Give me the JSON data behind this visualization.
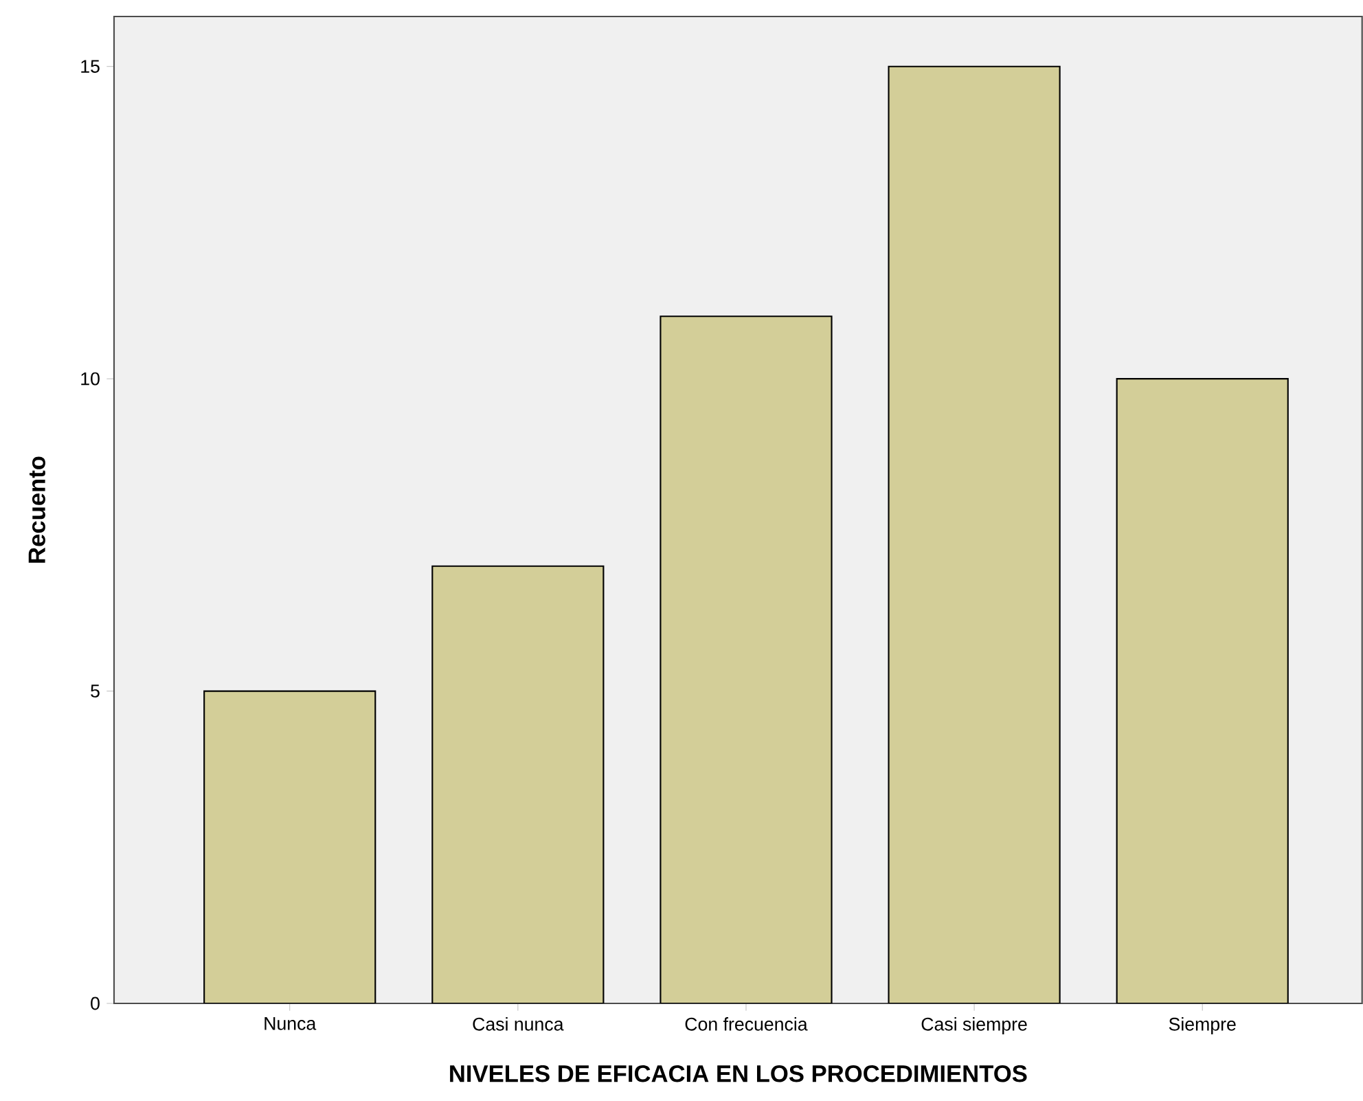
{
  "chart_data": {
    "type": "bar",
    "xlabel": "NIVELES DE EFICACIA EN LOS PROCEDIMIENTOS",
    "ylabel": "Recuento",
    "categories": [
      "Nunca",
      "Casi nunca",
      "Con frecuencia",
      "Casi siempre",
      "Siempre"
    ],
    "values": [
      5,
      7,
      11,
      15,
      10
    ],
    "color": "#d3ce98",
    "ylim": [
      0,
      15.8
    ],
    "yticks": [
      0,
      5,
      10,
      15
    ],
    "grid": false
  }
}
